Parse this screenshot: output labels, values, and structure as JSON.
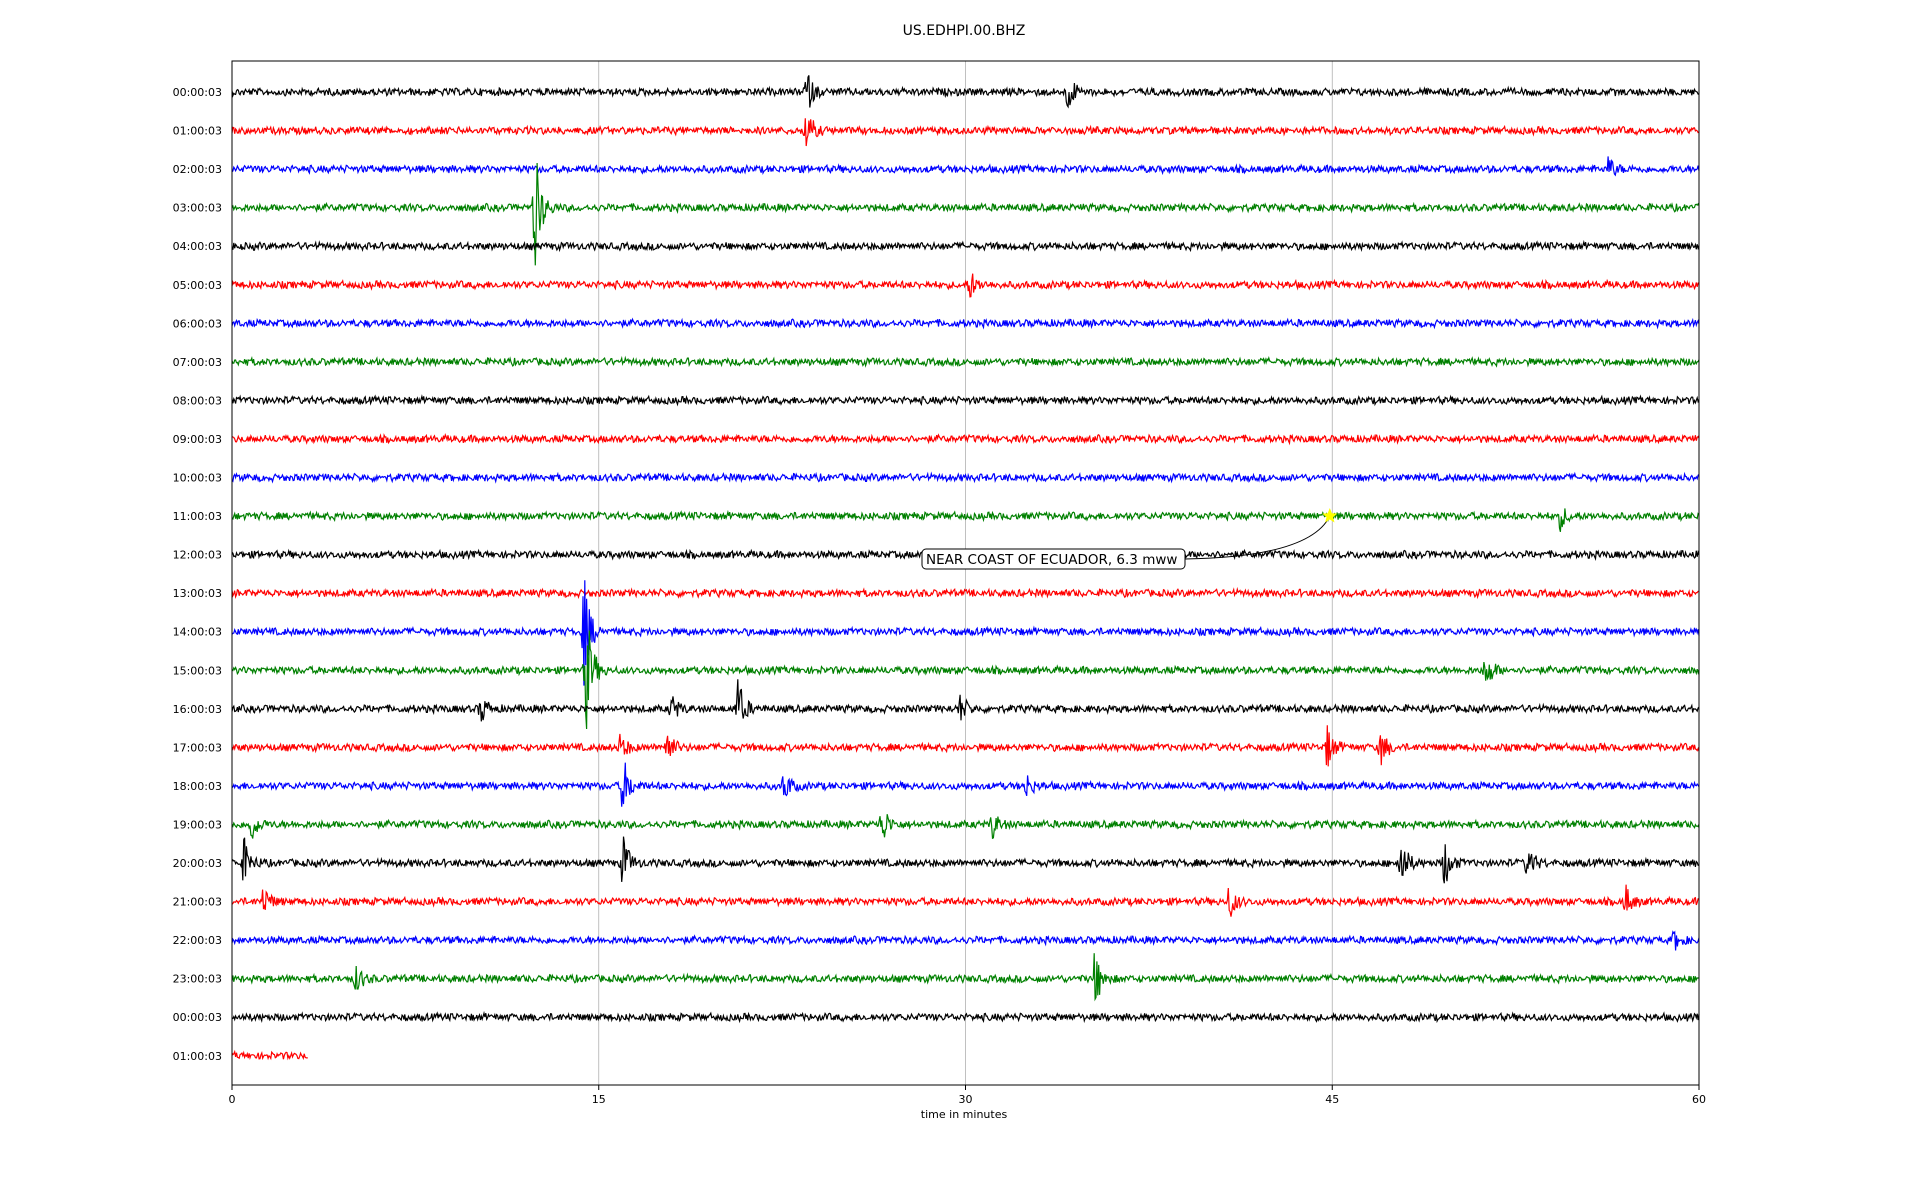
{
  "chart_data": {
    "type": "line",
    "title": "US.EDHPI.00.BHZ",
    "xlabel": "time in minutes",
    "ylabel": "",
    "xlim": [
      0,
      60
    ],
    "x_ticks": [
      0,
      15,
      30,
      45,
      60
    ],
    "grid": "vertical lines at 15, 30, 45",
    "trace_colors": [
      "#000000",
      "#ff0000",
      "#0000ff",
      "#008000"
    ],
    "rows": [
      {
        "label": "00:00:03",
        "color": "#000000",
        "end_min": 60,
        "events": [
          {
            "t": 23.5,
            "a": 22
          },
          {
            "t": 34.2,
            "a": 20
          }
        ]
      },
      {
        "label": "01:00:03",
        "color": "#ff0000",
        "end_min": 60,
        "events": [
          {
            "t": 23.5,
            "a": 22
          }
        ]
      },
      {
        "label": "02:00:03",
        "color": "#0000ff",
        "end_min": 60,
        "events": [
          {
            "t": 56.3,
            "a": 12
          }
        ]
      },
      {
        "label": "03:00:03",
        "color": "#008000",
        "end_min": 60,
        "events": [
          {
            "t": 12.4,
            "a": 62
          }
        ]
      },
      {
        "label": "04:00:03",
        "color": "#000000",
        "end_min": 60,
        "events": []
      },
      {
        "label": "05:00:03",
        "color": "#ff0000",
        "end_min": 60,
        "events": [
          {
            "t": 30.2,
            "a": 14
          }
        ]
      },
      {
        "label": "06:00:03",
        "color": "#0000ff",
        "end_min": 60,
        "events": []
      },
      {
        "label": "07:00:03",
        "color": "#008000",
        "end_min": 60,
        "events": []
      },
      {
        "label": "08:00:03",
        "color": "#000000",
        "end_min": 60,
        "events": []
      },
      {
        "label": "09:00:03",
        "color": "#ff0000",
        "end_min": 60,
        "events": []
      },
      {
        "label": "10:00:03",
        "color": "#0000ff",
        "end_min": 60,
        "events": []
      },
      {
        "label": "11:00:03",
        "color": "#008000",
        "end_min": 60,
        "events": [
          {
            "t": 54.3,
            "a": 14
          }
        ]
      },
      {
        "label": "12:00:03",
        "color": "#000000",
        "end_min": 60,
        "events": []
      },
      {
        "label": "13:00:03",
        "color": "#ff0000",
        "end_min": 60,
        "events": []
      },
      {
        "label": "14:00:03",
        "color": "#0000ff",
        "end_min": 60,
        "events": [
          {
            "t": 14.4,
            "a": 55
          }
        ]
      },
      {
        "label": "15:00:03",
        "color": "#008000",
        "end_min": 60,
        "events": [
          {
            "t": 14.5,
            "a": 62
          },
          {
            "t": 51.3,
            "a": 20
          }
        ]
      },
      {
        "label": "16:00:03",
        "color": "#000000",
        "end_min": 60,
        "events": [
          {
            "t": 10.2,
            "a": 14
          },
          {
            "t": 18.0,
            "a": 14
          },
          {
            "t": 20.7,
            "a": 30
          },
          {
            "t": 29.8,
            "a": 14
          }
        ]
      },
      {
        "label": "17:00:03",
        "color": "#ff0000",
        "end_min": 60,
        "events": [
          {
            "t": 15.9,
            "a": 14
          },
          {
            "t": 17.8,
            "a": 18
          },
          {
            "t": 44.8,
            "a": 22
          },
          {
            "t": 47.0,
            "a": 18
          }
        ]
      },
      {
        "label": "18:00:03",
        "color": "#0000ff",
        "end_min": 60,
        "events": [
          {
            "t": 16.0,
            "a": 30
          },
          {
            "t": 22.6,
            "a": 16
          },
          {
            "t": 32.5,
            "a": 12
          }
        ]
      },
      {
        "label": "19:00:03",
        "color": "#008000",
        "end_min": 60,
        "events": [
          {
            "t": 0.8,
            "a": 16
          },
          {
            "t": 26.6,
            "a": 20
          },
          {
            "t": 31.1,
            "a": 14
          }
        ]
      },
      {
        "label": "20:00:03",
        "color": "#000000",
        "end_min": 60,
        "events": [
          {
            "t": 0.5,
            "a": 24
          },
          {
            "t": 16.0,
            "a": 28
          },
          {
            "t": 47.8,
            "a": 30
          },
          {
            "t": 49.6,
            "a": 24
          },
          {
            "t": 53.0,
            "a": 18
          }
        ]
      },
      {
        "label": "21:00:03",
        "color": "#ff0000",
        "end_min": 60,
        "events": [
          {
            "t": 1.3,
            "a": 16
          },
          {
            "t": 40.8,
            "a": 18
          },
          {
            "t": 57.0,
            "a": 16
          }
        ]
      },
      {
        "label": "22:00:03",
        "color": "#0000ff",
        "end_min": 60,
        "events": [
          {
            "t": 59.0,
            "a": 10
          }
        ]
      },
      {
        "label": "23:00:03",
        "color": "#008000",
        "end_min": 60,
        "events": [
          {
            "t": 5.1,
            "a": 14
          },
          {
            "t": 35.3,
            "a": 30
          }
        ]
      },
      {
        "label": "00:00:03",
        "color": "#000000",
        "end_min": 60,
        "events": []
      },
      {
        "label": "01:00:03",
        "color": "#ff0000",
        "end_min": 3.1,
        "events": []
      }
    ],
    "annotations": [
      {
        "text": "NEAR COAST OF ECUADOR, 6.3 mww",
        "marker_row": 11,
        "marker_t": 44.9,
        "marker_color": "#ffff00"
      }
    ]
  }
}
